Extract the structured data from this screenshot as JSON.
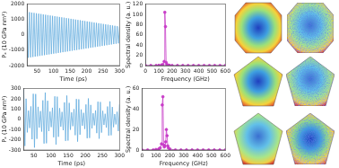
{
  "chart_data": [
    {
      "type": "line",
      "xlabel": "Time (ps)",
      "ylabel": "Pₓ (10 GPa nm³)",
      "grid": false,
      "marker": "none",
      "xlim": [
        20,
        300
      ],
      "xticks": [
        50,
        100,
        150,
        200,
        250,
        300
      ],
      "ylim": [
        -2000,
        2000
      ],
      "yticks": [
        -2000,
        -1000,
        0,
        1000,
        2000
      ],
      "x": [
        20,
        23.5,
        27,
        30.5,
        34,
        37.5,
        41,
        44.5,
        48,
        51.5,
        55,
        58.5,
        62,
        65.5,
        69,
        72.5,
        76,
        79.5,
        83,
        86.5,
        90,
        93.5,
        97,
        100.5,
        104,
        107.5,
        111,
        114.5,
        118,
        121.5,
        125,
        128.5,
        132,
        135.5,
        139,
        142.5,
        146,
        149.5,
        153,
        156.5,
        160,
        163.5,
        167,
        170.5,
        174,
        177.5,
        181,
        184.5,
        188,
        191.5,
        195,
        198.5,
        202,
        205.5,
        209,
        212.5,
        216,
        219.5,
        223,
        226.5,
        230,
        233.5,
        237,
        240.5,
        244,
        247.5,
        251,
        254.5,
        258,
        261.5,
        265,
        268.5,
        272,
        275.5,
        279,
        282.5,
        286,
        289.5,
        293,
        296.5,
        300
      ],
      "series": [
        {
          "color": "#5aa7dc",
          "values": [
            1500,
            -1488,
            1476,
            -1464,
            1452,
            -1440,
            1428,
            -1416,
            1404,
            -1392,
            1380,
            -1368,
            1356,
            -1344,
            1332,
            -1320,
            1308,
            -1296,
            1284,
            -1272,
            1260,
            -1248,
            1236,
            -1224,
            1212,
            -1200,
            1188,
            -1176,
            1164,
            -1152,
            1140,
            -1128,
            1116,
            -1104,
            1092,
            -1080,
            1068,
            -1056,
            1044,
            -1032,
            1020,
            -1008,
            996,
            -984,
            972,
            -960,
            948,
            -936,
            924,
            -912,
            900,
            -888,
            876,
            -864,
            852,
            -840,
            828,
            -816,
            804,
            -792,
            780,
            -768,
            756,
            -744,
            732,
            -720,
            708,
            -696,
            684,
            -672,
            660,
            -648,
            636,
            -624,
            612,
            -600,
            588,
            -576,
            564,
            -552,
            540
          ]
        }
      ]
    },
    {
      "type": "line",
      "xlabel": "Frequency (GHz)",
      "ylabel": "Spectral density (a. u.)",
      "grid": false,
      "marker": "circle",
      "xlim": [
        0,
        600
      ],
      "xticks": [
        0,
        100,
        200,
        300,
        400,
        500,
        600
      ],
      "ylim": [
        0,
        120
      ],
      "yticks": [
        0,
        20,
        40,
        60,
        80,
        100,
        120
      ],
      "x": [
        0,
        40,
        80,
        100,
        120,
        130,
        140,
        145,
        150,
        155,
        160,
        170,
        180,
        200,
        240,
        280,
        320,
        360,
        400,
        440,
        480,
        520,
        560,
        600
      ],
      "series": [
        {
          "color": "#c83cc8",
          "values": [
            0,
            0,
            0,
            0.5,
            1,
            2,
            8,
            104,
            76,
            6,
            2,
            1,
            0.5,
            0,
            0,
            0,
            0,
            0,
            0,
            0,
            0,
            0,
            0,
            0
          ]
        }
      ]
    },
    {
      "type": "line",
      "xlabel": "Time (ps)",
      "ylabel": "Pₓ (10 GPa nm³)",
      "grid": false,
      "marker": "none",
      "xlim": [
        20,
        300
      ],
      "xticks": [
        50,
        100,
        150,
        200,
        250,
        300
      ],
      "ylim": [
        -300,
        300
      ],
      "yticks": [
        -300,
        -200,
        -100,
        0,
        100,
        200,
        300
      ],
      "x": [
        20,
        23.5,
        27,
        30.5,
        34,
        37.5,
        41,
        44.5,
        48,
        51.5,
        55,
        58.5,
        62,
        65.5,
        69,
        72.5,
        76,
        79.5,
        83,
        86.5,
        90,
        93.5,
        97,
        100.5,
        104,
        107.5,
        111,
        114.5,
        118,
        121.5,
        125,
        128.5,
        132,
        135.5,
        139,
        142.5,
        146,
        149.5,
        153,
        156.5,
        160,
        163.5,
        167,
        170.5,
        174,
        177.5,
        181,
        184.5,
        188,
        191.5,
        195,
        198.5,
        202,
        205.5,
        209,
        212.5,
        216,
        219.5,
        223,
        226.5,
        230,
        233.5,
        237,
        240.5,
        244,
        247.5,
        251,
        254.5,
        258,
        261.5,
        265,
        268.5,
        272,
        275.5,
        279,
        282.5,
        286,
        289.5,
        293,
        296.5,
        300
      ],
      "series": [
        {
          "color": "#5aa7dc",
          "values": [
            290,
            -260,
            201,
            -128,
            85,
            -85,
            126,
            -195,
            249,
            -276,
            247,
            -191,
            122,
            -81,
            80,
            -120,
            185,
            -237,
            261,
            -234,
            181,
            -115,
            76,
            -76,
            113,
            -175,
            224,
            -247,
            221,
            -171,
            109,
            -72,
            72,
            -107,
            165,
            -211,
            232,
            -208,
            160,
            -102,
            68,
            -67,
            100,
            -155,
            198,
            -218,
            195,
            -150,
            96,
            -63,
            63,
            -94,
            145,
            -185,
            204,
            -182,
            140,
            -89,
            59,
            -59,
            87,
            -135,
            172,
            -189,
            169,
            -130,
            83,
            -55,
            54,
            -81,
            125,
            -159,
            175,
            -156,
            120,
            -77,
            51,
            -50,
            74,
            -115,
            146
          ]
        }
      ]
    },
    {
      "type": "line",
      "xlabel": "Frequency (GHz)",
      "ylabel": "Spectral density (a. u.)",
      "grid": false,
      "marker": "circle",
      "xlim": [
        0,
        600
      ],
      "xticks": [
        0,
        100,
        200,
        300,
        400,
        500,
        600
      ],
      "ylim": [
        0,
        60
      ],
      "yticks": [
        0,
        20,
        40,
        60
      ],
      "x": [
        0,
        40,
        80,
        100,
        120,
        130,
        140,
        145,
        150,
        155,
        160,
        165,
        170,
        175,
        180,
        185,
        190,
        200,
        240,
        280,
        320,
        360,
        400,
        440,
        480,
        520,
        560,
        600
      ],
      "series": [
        {
          "color": "#c83cc8",
          "values": [
            0,
            0,
            0,
            0.5,
            1,
            2,
            6,
            44,
            52,
            5,
            3,
            4,
            8,
            20,
            14,
            4,
            2,
            1,
            0,
            0,
            0,
            0,
            0,
            0,
            0,
            0,
            0,
            0
          ]
        }
      ]
    }
  ]
}
